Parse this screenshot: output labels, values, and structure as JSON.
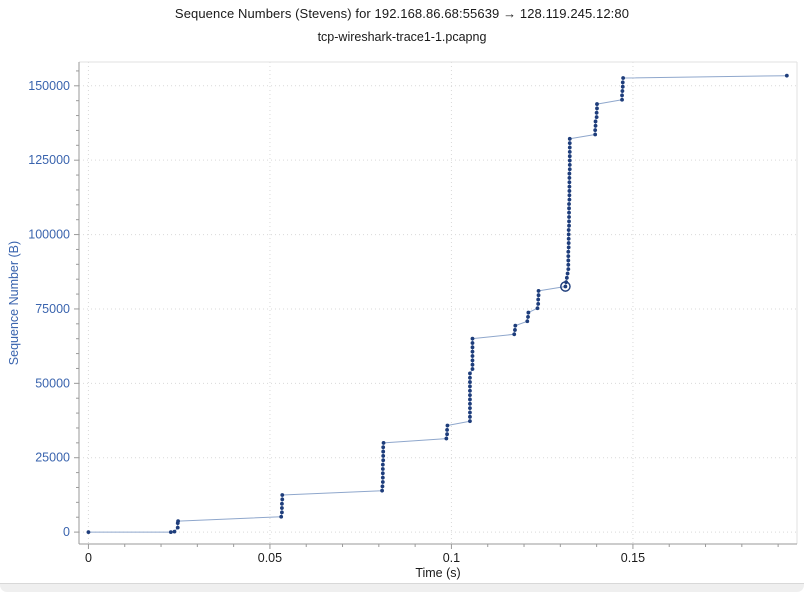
{
  "chart_data": {
    "type": "scatter",
    "title": "Sequence Numbers (Stevens) for 192.168.86.68:55639 → 128.119.245.12:80",
    "subtitle": "tcp-wireshark-trace1-1.pcapng",
    "xlabel": "Time (s)",
    "ylabel": "Sequence Number (B)",
    "xlim": [
      -0.0026,
      0.1952
    ],
    "ylim": [
      -4000,
      158000
    ],
    "x_major_ticks": [
      0,
      0.05,
      0.1,
      0.15
    ],
    "x_major_labels": [
      "0",
      "0.05",
      "0.1",
      "0.15"
    ],
    "x_minor_step": 0.01,
    "y_major_ticks": [
      0,
      25000,
      50000,
      75000,
      100000,
      125000,
      150000
    ],
    "y_major_labels": [
      "0",
      "25000",
      "50000",
      "75000",
      "100000",
      "125000",
      "150000"
    ],
    "y_minor_step": 5000,
    "grid": "dotted-major-both-axes",
    "legend": "none",
    "colors": {
      "point": "#1e3d7b",
      "line": "#8fa7cc",
      "selection_ring": "#1e3d7b",
      "y_tick_text": "#3a64ae",
      "x_tick_text": "#1a1a1a",
      "grid": "#d9d9d9",
      "axis": "#9a9a9a",
      "frame": "#e2e2e2"
    },
    "selected_index": 59,
    "selected_point": {
      "time_s": 0.1314,
      "seq_b": 82540
    },
    "points": [
      [
        0.0,
        0
      ],
      [
        0.0227,
        0
      ],
      [
        0.0237,
        150
      ],
      [
        0.0246,
        1500
      ],
      [
        0.0246,
        3000
      ],
      [
        0.0247,
        3700
      ],
      [
        0.0531,
        5160
      ],
      [
        0.0533,
        6620
      ],
      [
        0.0533,
        8080
      ],
      [
        0.0533,
        9540
      ],
      [
        0.0534,
        11000
      ],
      [
        0.0534,
        12460
      ],
      [
        0.0809,
        13920
      ],
      [
        0.081,
        15380
      ],
      [
        0.0811,
        16840
      ],
      [
        0.0811,
        18300
      ],
      [
        0.0811,
        19760
      ],
      [
        0.0811,
        21220
      ],
      [
        0.0811,
        22680
      ],
      [
        0.0812,
        24140
      ],
      [
        0.0812,
        25600
      ],
      [
        0.0812,
        27060
      ],
      [
        0.0812,
        28520
      ],
      [
        0.0813,
        29980
      ],
      [
        0.0986,
        31440
      ],
      [
        0.0988,
        32900
      ],
      [
        0.0988,
        34360
      ],
      [
        0.0989,
        35820
      ],
      [
        0.1051,
        37280
      ],
      [
        0.1051,
        38740
      ],
      [
        0.1051,
        40200
      ],
      [
        0.1051,
        41660
      ],
      [
        0.1051,
        43120
      ],
      [
        0.1051,
        44580
      ],
      [
        0.1051,
        46040
      ],
      [
        0.1051,
        47500
      ],
      [
        0.1051,
        48960
      ],
      [
        0.1051,
        50420
      ],
      [
        0.1051,
        51880
      ],
      [
        0.1051,
        53340
      ],
      [
        0.1058,
        54800
      ],
      [
        0.1058,
        56260
      ],
      [
        0.1058,
        57720
      ],
      [
        0.1058,
        59180
      ],
      [
        0.1058,
        60640
      ],
      [
        0.1058,
        62100
      ],
      [
        0.1058,
        63560
      ],
      [
        0.1058,
        65020
      ],
      [
        0.1173,
        66480
      ],
      [
        0.1175,
        67940
      ],
      [
        0.1176,
        69400
      ],
      [
        0.1209,
        70860
      ],
      [
        0.1211,
        72320
      ],
      [
        0.1212,
        73780
      ],
      [
        0.1237,
        75240
      ],
      [
        0.1239,
        76700
      ],
      [
        0.1239,
        78160
      ],
      [
        0.124,
        79620
      ],
      [
        0.124,
        81080
      ],
      [
        0.1314,
        82540
      ],
      [
        0.1316,
        84000
      ],
      [
        0.1318,
        85460
      ],
      [
        0.132,
        86920
      ],
      [
        0.1322,
        88380
      ],
      [
        0.1322,
        89840
      ],
      [
        0.1322,
        91300
      ],
      [
        0.1322,
        92760
      ],
      [
        0.1322,
        94220
      ],
      [
        0.1323,
        95680
      ],
      [
        0.1323,
        97140
      ],
      [
        0.1323,
        98600
      ],
      [
        0.1323,
        100060
      ],
      [
        0.1323,
        101520
      ],
      [
        0.1324,
        102980
      ],
      [
        0.1324,
        104440
      ],
      [
        0.1324,
        105900
      ],
      [
        0.1324,
        107360
      ],
      [
        0.1324,
        108820
      ],
      [
        0.1324,
        110280
      ],
      [
        0.1325,
        111740
      ],
      [
        0.1325,
        113200
      ],
      [
        0.1325,
        114660
      ],
      [
        0.1325,
        116120
      ],
      [
        0.1325,
        117580
      ],
      [
        0.1325,
        119040
      ],
      [
        0.1325,
        120500
      ],
      [
        0.1326,
        121960
      ],
      [
        0.1326,
        123420
      ],
      [
        0.1326,
        124880
      ],
      [
        0.1326,
        126340
      ],
      [
        0.1326,
        127800
      ],
      [
        0.1326,
        129260
      ],
      [
        0.1326,
        130720
      ],
      [
        0.1326,
        132180
      ],
      [
        0.1396,
        133640
      ],
      [
        0.1396,
        135100
      ],
      [
        0.1397,
        136560
      ],
      [
        0.1397,
        138020
      ],
      [
        0.14,
        139480
      ],
      [
        0.14,
        140940
      ],
      [
        0.1401,
        142400
      ],
      [
        0.1401,
        143860
      ],
      [
        0.147,
        145320
      ],
      [
        0.147,
        146780
      ],
      [
        0.1471,
        148240
      ],
      [
        0.1472,
        149700
      ],
      [
        0.1472,
        151160
      ],
      [
        0.1473,
        152620
      ],
      [
        0.1924,
        153400
      ]
    ]
  }
}
